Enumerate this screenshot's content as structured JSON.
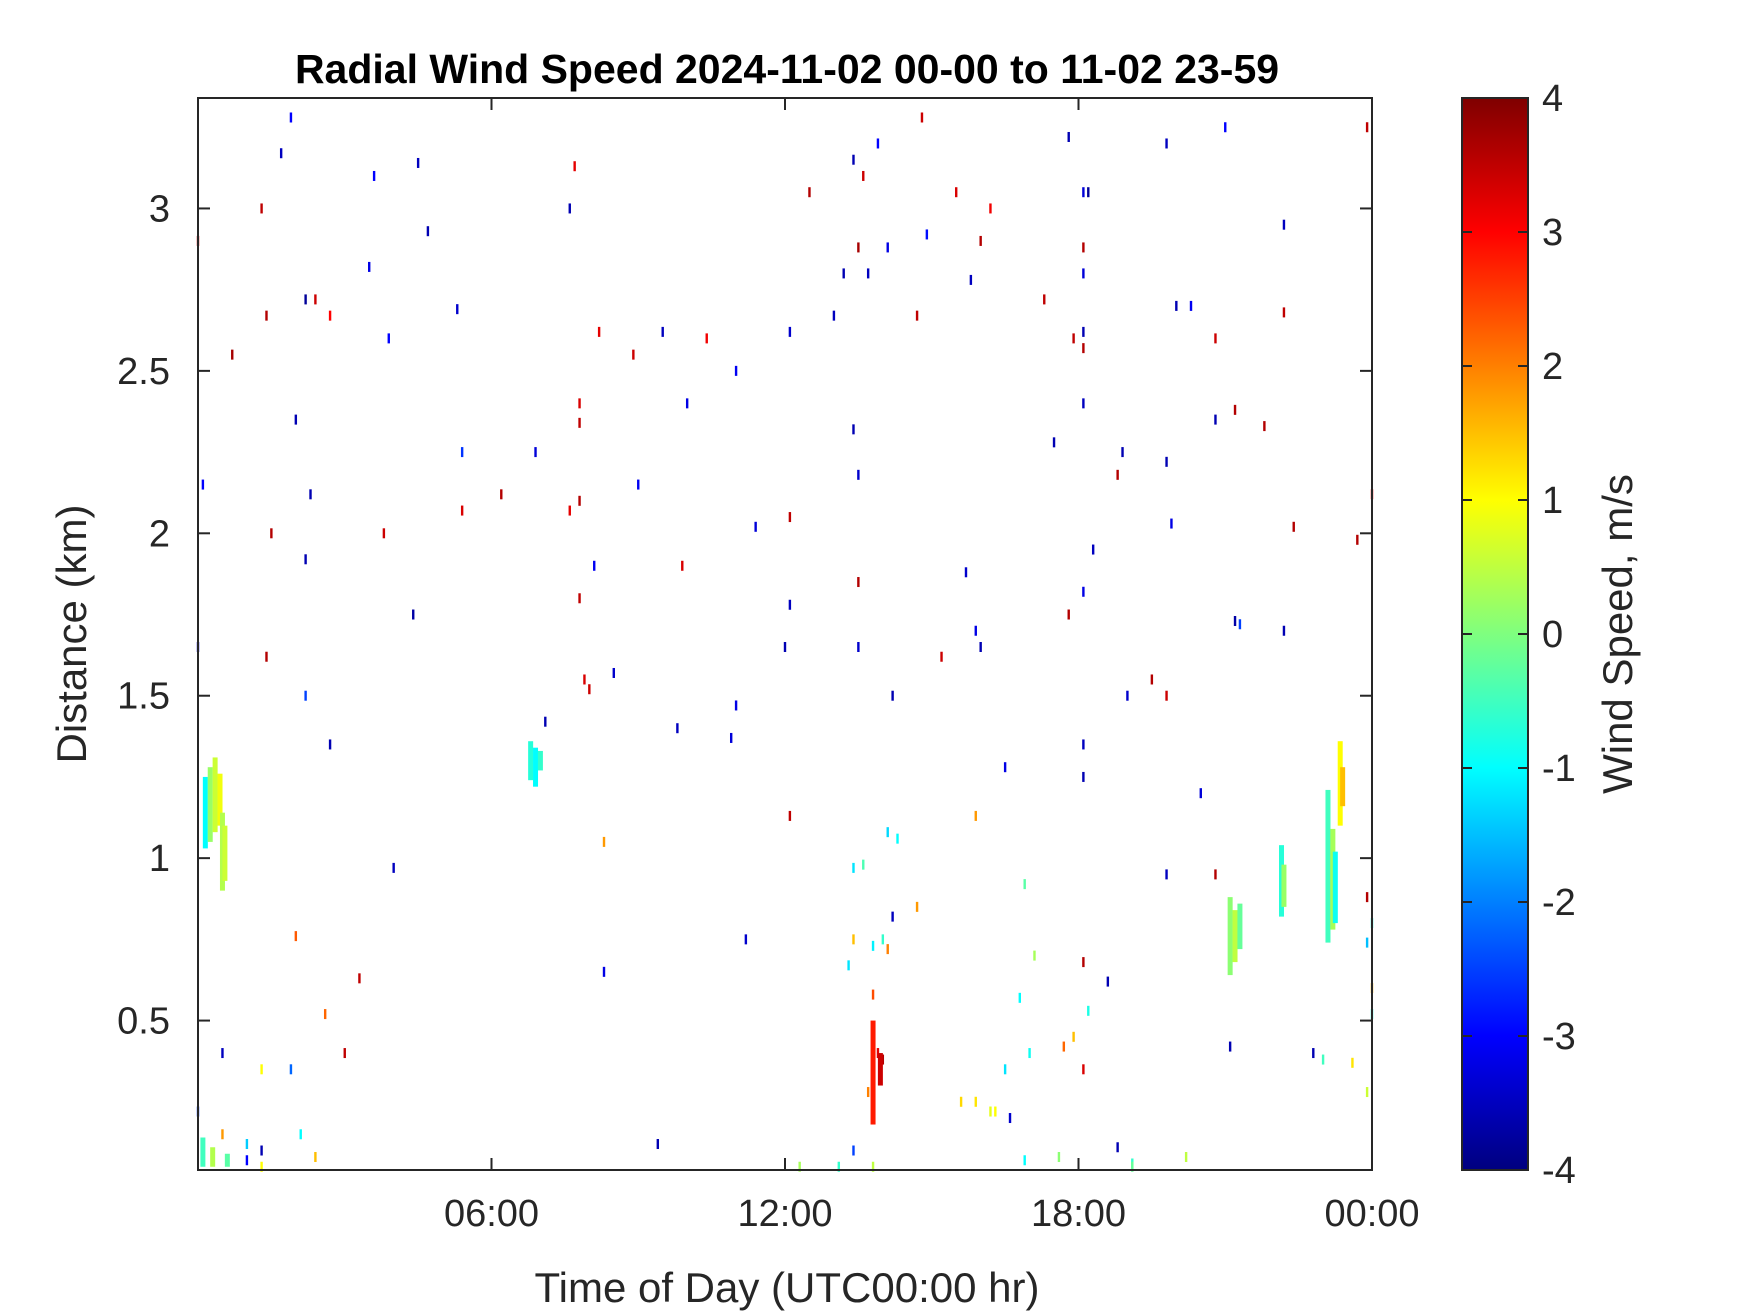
{
  "chart_data": {
    "type": "heatmap",
    "title": "Radial Wind Speed 2024-11-02 00-00 to 11-02 23-59",
    "xlabel": "Time of Day (UTC00:00 hr)",
    "ylabel": "Distance (km)",
    "xlim": [
      0,
      24
    ],
    "ylim": [
      0.04,
      3.34
    ],
    "x_ticks": [
      6,
      12,
      18,
      24
    ],
    "x_tick_labels": [
      "06:00",
      "12:00",
      "18:00",
      "00:00"
    ],
    "y_ticks": [
      0.5,
      1,
      1.5,
      2,
      2.5,
      3
    ],
    "y_tick_labels": [
      "0.5",
      "1",
      "1.5",
      "2",
      "2.5",
      "3"
    ],
    "colorbar": {
      "label": "Wind Speed, m/s",
      "colormap": "jet",
      "clim": [
        -4,
        4
      ],
      "ticks": [
        -4,
        -3,
        -2,
        -1,
        0,
        1,
        2,
        3,
        4
      ],
      "tick_labels": [
        "-4",
        "-3",
        "-2",
        "-1",
        "0",
        "1",
        "2",
        "3",
        "4"
      ]
    },
    "grid": false,
    "scattered_points": [
      {
        "x": 1.9,
        "y": 3.28,
        "v": -3
      },
      {
        "x": 1.7,
        "y": 3.17,
        "v": -3.5
      },
      {
        "x": 4.5,
        "y": 3.14,
        "v": -3.5
      },
      {
        "x": 3.6,
        "y": 3.1,
        "v": -3
      },
      {
        "x": 7.7,
        "y": 3.13,
        "v": 3.2
      },
      {
        "x": 1.3,
        "y": 3.0,
        "v": 3.5
      },
      {
        "x": 7.6,
        "y": 3.0,
        "v": -3.6
      },
      {
        "x": 0.0,
        "y": 2.9,
        "v": 3.3
      },
      {
        "x": 4.7,
        "y": 2.93,
        "v": -3.6
      },
      {
        "x": 3.5,
        "y": 2.82,
        "v": -3.2
      },
      {
        "x": 2.2,
        "y": 2.72,
        "v": -3.8
      },
      {
        "x": 2.4,
        "y": 2.72,
        "v": 3.4
      },
      {
        "x": 1.4,
        "y": 2.67,
        "v": 3.6
      },
      {
        "x": 2.7,
        "y": 2.67,
        "v": 3.0
      },
      {
        "x": 5.3,
        "y": 2.69,
        "v": -3.4
      },
      {
        "x": 3.9,
        "y": 2.6,
        "v": -3.0
      },
      {
        "x": 0.7,
        "y": 2.55,
        "v": 3.7
      },
      {
        "x": 8.2,
        "y": 2.62,
        "v": 3.2
      },
      {
        "x": 8.9,
        "y": 2.55,
        "v": 3.4
      },
      {
        "x": 9.5,
        "y": 2.62,
        "v": -3.5
      },
      {
        "x": 10.4,
        "y": 2.6,
        "v": 3.1
      },
      {
        "x": 7.8,
        "y": 2.4,
        "v": 3.3
      },
      {
        "x": 7.8,
        "y": 2.34,
        "v": 3.5
      },
      {
        "x": 2.0,
        "y": 2.35,
        "v": -3.6
      },
      {
        "x": 10.0,
        "y": 2.4,
        "v": -3.2
      },
      {
        "x": 5.4,
        "y": 2.25,
        "v": -2.6
      },
      {
        "x": 6.9,
        "y": 2.25,
        "v": -3.3
      },
      {
        "x": 0.1,
        "y": 2.15,
        "v": -3.0
      },
      {
        "x": 2.3,
        "y": 2.12,
        "v": -3.6
      },
      {
        "x": 6.2,
        "y": 2.12,
        "v": 3.6
      },
      {
        "x": 5.4,
        "y": 2.07,
        "v": 3.3
      },
      {
        "x": 7.6,
        "y": 2.07,
        "v": 3.2
      },
      {
        "x": 7.8,
        "y": 2.1,
        "v": 3.6
      },
      {
        "x": 9.0,
        "y": 2.15,
        "v": -3.1
      },
      {
        "x": 1.5,
        "y": 2.0,
        "v": 3.6
      },
      {
        "x": 3.8,
        "y": 2.0,
        "v": 3.4
      },
      {
        "x": 2.2,
        "y": 1.92,
        "v": -3.6
      },
      {
        "x": 8.1,
        "y": 1.9,
        "v": -3.1
      },
      {
        "x": 9.9,
        "y": 1.9,
        "v": 3.3
      },
      {
        "x": 4.4,
        "y": 1.75,
        "v": -3.7
      },
      {
        "x": 7.8,
        "y": 1.8,
        "v": 3.5
      },
      {
        "x": 0.0,
        "y": 1.65,
        "v": -3.3
      },
      {
        "x": 1.4,
        "y": 1.62,
        "v": 3.6
      },
      {
        "x": 7.9,
        "y": 1.55,
        "v": 3.3
      },
      {
        "x": 8.0,
        "y": 1.52,
        "v": 3.4
      },
      {
        "x": 8.5,
        "y": 1.57,
        "v": -3.4
      },
      {
        "x": 2.2,
        "y": 1.5,
        "v": -2.5
      },
      {
        "x": 11.0,
        "y": 1.47,
        "v": -3.2
      },
      {
        "x": 7.1,
        "y": 1.42,
        "v": -3.6
      },
      {
        "x": 9.8,
        "y": 1.4,
        "v": -3.5
      },
      {
        "x": 10.9,
        "y": 1.37,
        "v": -3.3
      },
      {
        "x": 2.7,
        "y": 1.35,
        "v": -3.6
      },
      {
        "x": 11.4,
        "y": 2.02,
        "v": -3.3
      },
      {
        "x": 11.0,
        "y": 2.5,
        "v": -3.1
      },
      {
        "x": 12.1,
        "y": 2.62,
        "v": -3.4
      },
      {
        "x": 12.1,
        "y": 2.05,
        "v": 3.5
      },
      {
        "x": 12.1,
        "y": 1.78,
        "v": -3.5
      },
      {
        "x": 12.0,
        "y": 1.65,
        "v": -3.6
      },
      {
        "x": 12.1,
        "y": 1.13,
        "v": 3.5
      },
      {
        "x": 11.2,
        "y": 0.75,
        "v": -3.4
      },
      {
        "x": 8.3,
        "y": 0.65,
        "v": -3.2
      },
      {
        "x": 12.5,
        "y": 3.05,
        "v": 3.6
      },
      {
        "x": 13.4,
        "y": 3.15,
        "v": -3.6
      },
      {
        "x": 13.6,
        "y": 3.1,
        "v": 3.4
      },
      {
        "x": 13.9,
        "y": 3.2,
        "v": -3.0
      },
      {
        "x": 14.8,
        "y": 3.28,
        "v": 3.4
      },
      {
        "x": 14.9,
        "y": 2.92,
        "v": -2.9
      },
      {
        "x": 13.5,
        "y": 2.88,
        "v": 3.7
      },
      {
        "x": 13.2,
        "y": 2.8,
        "v": -3.6
      },
      {
        "x": 13.7,
        "y": 2.8,
        "v": -3.5
      },
      {
        "x": 14.1,
        "y": 2.88,
        "v": -3.2
      },
      {
        "x": 13.0,
        "y": 2.67,
        "v": -3.5
      },
      {
        "x": 14.7,
        "y": 2.67,
        "v": 3.5
      },
      {
        "x": 13.4,
        "y": 2.32,
        "v": -3.6
      },
      {
        "x": 13.5,
        "y": 2.18,
        "v": -3.4
      },
      {
        "x": 13.5,
        "y": 1.85,
        "v": 3.6
      },
      {
        "x": 13.5,
        "y": 1.65,
        "v": -3.4
      },
      {
        "x": 15.2,
        "y": 1.62,
        "v": 3.4
      },
      {
        "x": 14.2,
        "y": 1.5,
        "v": -3.6
      },
      {
        "x": 15.9,
        "y": 1.7,
        "v": -3.2
      },
      {
        "x": 16.0,
        "y": 1.65,
        "v": -3.6
      },
      {
        "x": 15.7,
        "y": 1.88,
        "v": -3.4
      },
      {
        "x": 15.5,
        "y": 3.05,
        "v": 3.3
      },
      {
        "x": 16.2,
        "y": 3.0,
        "v": 3.1
      },
      {
        "x": 16.0,
        "y": 2.9,
        "v": 3.6
      },
      {
        "x": 15.8,
        "y": 2.78,
        "v": -3.5
      },
      {
        "x": 17.3,
        "y": 2.72,
        "v": 3.5
      },
      {
        "x": 17.8,
        "y": 3.22,
        "v": -3.6
      },
      {
        "x": 18.2,
        "y": 3.05,
        "v": -3.8
      },
      {
        "x": 18.1,
        "y": 3.05,
        "v": -3.3
      },
      {
        "x": 18.1,
        "y": 2.88,
        "v": 3.6
      },
      {
        "x": 18.1,
        "y": 2.8,
        "v": -3.3
      },
      {
        "x": 18.1,
        "y": 2.62,
        "v": -3.6
      },
      {
        "x": 18.1,
        "y": 2.57,
        "v": 3.6
      },
      {
        "x": 17.9,
        "y": 2.6,
        "v": 3.5
      },
      {
        "x": 18.1,
        "y": 2.4,
        "v": -3.5
      },
      {
        "x": 17.5,
        "y": 2.28,
        "v": -3.6
      },
      {
        "x": 18.3,
        "y": 1.95,
        "v": -3.5
      },
      {
        "x": 18.1,
        "y": 1.82,
        "v": -3.2
      },
      {
        "x": 17.8,
        "y": 1.75,
        "v": 3.6
      },
      {
        "x": 18.1,
        "y": 1.35,
        "v": -3.5
      },
      {
        "x": 18.1,
        "y": 1.25,
        "v": -3.6
      },
      {
        "x": 16.5,
        "y": 1.28,
        "v": -3.2
      },
      {
        "x": 18.1,
        "y": 0.68,
        "v": 3.6
      },
      {
        "x": 18.6,
        "y": 0.62,
        "v": -3.6
      },
      {
        "x": 18.8,
        "y": 2.18,
        "v": 3.6
      },
      {
        "x": 18.9,
        "y": 2.25,
        "v": -3.6
      },
      {
        "x": 19.8,
        "y": 3.2,
        "v": -3.5
      },
      {
        "x": 19.5,
        "y": 1.55,
        "v": 3.6
      },
      {
        "x": 19.0,
        "y": 1.5,
        "v": -3.4
      },
      {
        "x": 19.8,
        "y": 1.5,
        "v": 3.4
      },
      {
        "x": 19.8,
        "y": 2.22,
        "v": -3.6
      },
      {
        "x": 19.9,
        "y": 2.03,
        "v": -3.2
      },
      {
        "x": 20.0,
        "y": 2.7,
        "v": -3.6
      },
      {
        "x": 20.3,
        "y": 2.7,
        "v": -3.1
      },
      {
        "x": 20.8,
        "y": 2.6,
        "v": 3.4
      },
      {
        "x": 19.8,
        "y": 0.95,
        "v": -3.5
      },
      {
        "x": 20.5,
        "y": 1.2,
        "v": -3.3
      },
      {
        "x": 21.0,
        "y": 3.25,
        "v": -3.0
      },
      {
        "x": 20.8,
        "y": 2.35,
        "v": -3.6
      },
      {
        "x": 21.2,
        "y": 2.38,
        "v": 3.6
      },
      {
        "x": 21.8,
        "y": 2.33,
        "v": 3.6
      },
      {
        "x": 21.3,
        "y": 1.72,
        "v": -2.5
      },
      {
        "x": 21.2,
        "y": 1.73,
        "v": -3.7
      },
      {
        "x": 20.8,
        "y": 0.95,
        "v": 3.6
      },
      {
        "x": 21.1,
        "y": 0.42,
        "v": -3.6
      },
      {
        "x": 22.2,
        "y": 2.95,
        "v": -3.5
      },
      {
        "x": 22.2,
        "y": 2.68,
        "v": 3.5
      },
      {
        "x": 22.4,
        "y": 2.02,
        "v": 3.6
      },
      {
        "x": 23.7,
        "y": 1.98,
        "v": 3.6
      },
      {
        "x": 22.2,
        "y": 1.7,
        "v": -3.6
      },
      {
        "x": 23.9,
        "y": 3.25,
        "v": 3.5
      },
      {
        "x": 24.0,
        "y": 2.12,
        "v": 3.0
      },
      {
        "x": 23.9,
        "y": 0.88,
        "v": 3.6
      },
      {
        "x": 22.8,
        "y": 0.4,
        "v": -3.6
      },
      {
        "x": 23.0,
        "y": 0.38,
        "v": -0.5
      },
      {
        "x": 23.6,
        "y": 0.37,
        "v": 1.2
      },
      {
        "x": 0.5,
        "y": 0.4,
        "v": -3.5
      },
      {
        "x": 3.0,
        "y": 0.4,
        "v": 3.5
      },
      {
        "x": 1.3,
        "y": 0.35,
        "v": 1.0
      },
      {
        "x": 1.9,
        "y": 0.35,
        "v": -2.2
      },
      {
        "x": 3.3,
        "y": 0.63,
        "v": 3.5
      },
      {
        "x": 2.6,
        "y": 0.52,
        "v": 2.2
      },
      {
        "x": 2.0,
        "y": 0.76,
        "v": 2.3
      },
      {
        "x": 4.0,
        "y": 0.97,
        "v": -3.5
      },
      {
        "x": 8.3,
        "y": 1.05,
        "v": 1.8
      },
      {
        "x": 9.4,
        "y": 0.12,
        "v": -3.6
      },
      {
        "x": 14.7,
        "y": 0.85,
        "v": 1.8
      },
      {
        "x": 16.9,
        "y": 0.92,
        "v": -0.3
      },
      {
        "x": 17.7,
        "y": 0.42,
        "v": 2.2
      },
      {
        "x": 17.9,
        "y": 0.45,
        "v": 1.5
      },
      {
        "x": 18.2,
        "y": 0.53,
        "v": -0.8
      },
      {
        "x": 18.1,
        "y": 0.35,
        "v": 3.3
      },
      {
        "x": 16.8,
        "y": 0.57,
        "v": -1.0
      },
      {
        "x": 16.5,
        "y": 0.35,
        "v": -1.2
      },
      {
        "x": 17.0,
        "y": 0.4,
        "v": -0.9
      },
      {
        "x": 17.1,
        "y": 0.7,
        "v": 0.3
      },
      {
        "x": 16.3,
        "y": 0.22,
        "v": 1.0
      },
      {
        "x": 16.6,
        "y": 0.2,
        "v": -3.4
      },
      {
        "x": 15.6,
        "y": 0.25,
        "v": 1.3
      },
      {
        "x": 15.9,
        "y": 0.25,
        "v": 1.2
      },
      {
        "x": 15.9,
        "y": 1.13,
        "v": 1.8
      },
      {
        "x": 16.9,
        "y": 0.07,
        "v": -1.0
      },
      {
        "x": 17.6,
        "y": 0.08,
        "v": 0.1
      },
      {
        "x": 14.1,
        "y": 1.08,
        "v": -1.3
      },
      {
        "x": 14.3,
        "y": 1.06,
        "v": -1.0
      },
      {
        "x": 13.4,
        "y": 0.97,
        "v": -1.2
      },
      {
        "x": 13.6,
        "y": 0.98,
        "v": -0.4
      },
      {
        "x": 13.8,
        "y": 0.73,
        "v": -1.1
      },
      {
        "x": 13.3,
        "y": 0.67,
        "v": -1.2
      },
      {
        "x": 13.4,
        "y": 0.75,
        "v": 1.5
      },
      {
        "x": 14.0,
        "y": 0.75,
        "v": -0.6
      },
      {
        "x": 14.2,
        "y": 0.82,
        "v": -3.5
      },
      {
        "x": 14.1,
        "y": 0.72,
        "v": 2.0
      },
      {
        "x": 13.8,
        "y": 0.58,
        "v": 2.4
      },
      {
        "x": 13.7,
        "y": 0.28,
        "v": 2.0
      },
      {
        "x": 13.8,
        "y": 0.2,
        "v": 3.0
      },
      {
        "x": 13.4,
        "y": 0.1,
        "v": -2.5
      },
      {
        "x": 13.1,
        "y": 0.05,
        "v": -0.6
      },
      {
        "x": 13.8,
        "y": 0.05,
        "v": 0.5
      },
      {
        "x": 14.0,
        "y": 0.38,
        "v": 3.6
      },
      {
        "x": 13.9,
        "y": 0.4,
        "v": 3.2
      },
      {
        "x": 1.0,
        "y": 0.12,
        "v": -1.4
      },
      {
        "x": 1.0,
        "y": 0.07,
        "v": -3.0
      },
      {
        "x": 1.3,
        "y": 0.1,
        "v": -3.6
      },
      {
        "x": 1.3,
        "y": 0.05,
        "v": 1.0
      },
      {
        "x": 2.1,
        "y": 0.15,
        "v": -1.0
      },
      {
        "x": 2.4,
        "y": 0.08,
        "v": 1.5
      },
      {
        "x": 0.5,
        "y": 0.15,
        "v": 1.8
      },
      {
        "x": 0.0,
        "y": 0.22,
        "v": -2.5
      },
      {
        "x": 12.3,
        "y": 0.05,
        "v": 0.3
      },
      {
        "x": 20.2,
        "y": 0.08,
        "v": 0.5
      },
      {
        "x": 19.1,
        "y": 0.06,
        "v": -0.6
      },
      {
        "x": 18.8,
        "y": 0.11,
        "v": -3.6
      },
      {
        "x": 19.1,
        "y": 0.05,
        "v": -0.2
      },
      {
        "x": 23.9,
        "y": 0.28,
        "v": 0.6
      },
      {
        "x": 24.0,
        "y": 0.52,
        "v": -0.8
      },
      {
        "x": 24.0,
        "y": 0.6,
        "v": 1.6
      },
      {
        "x": 24.0,
        "y": 0.8,
        "v": -0.8
      },
      {
        "x": 23.9,
        "y": 0.74,
        "v": -1.5
      },
      {
        "x": 16.2,
        "y": 0.22,
        "v": 0.8
      }
    ],
    "streaks": [
      {
        "x": 0.15,
        "y0": 1.03,
        "y1": 1.25,
        "v": -1.0
      },
      {
        "x": 0.25,
        "y0": 1.05,
        "y1": 1.28,
        "v": 0.2
      },
      {
        "x": 0.35,
        "y0": 1.08,
        "y1": 1.31,
        "v": 0.6
      },
      {
        "x": 0.45,
        "y0": 1.1,
        "y1": 1.26,
        "v": 0.9
      },
      {
        "x": 0.5,
        "y0": 0.9,
        "y1": 1.14,
        "v": 0.4
      },
      {
        "x": 0.55,
        "y0": 0.93,
        "y1": 1.1,
        "v": 0.6
      },
      {
        "x": 6.8,
        "y0": 1.24,
        "y1": 1.36,
        "v": -0.7
      },
      {
        "x": 6.9,
        "y0": 1.22,
        "y1": 1.34,
        "v": -1.0
      },
      {
        "x": 7.0,
        "y0": 1.27,
        "y1": 1.33,
        "v": -0.6
      },
      {
        "x": 0.1,
        "y0": 0.05,
        "y1": 0.14,
        "v": -0.5
      },
      {
        "x": 0.3,
        "y0": 0.05,
        "y1": 0.11,
        "v": 0.4
      },
      {
        "x": 0.6,
        "y0": 0.05,
        "y1": 0.09,
        "v": -0.3
      },
      {
        "x": 13.8,
        "y0": 0.18,
        "y1": 0.5,
        "v": 2.8
      },
      {
        "x": 13.95,
        "y0": 0.3,
        "y1": 0.4,
        "v": 3.4
      },
      {
        "x": 21.1,
        "y0": 0.64,
        "y1": 0.88,
        "v": 0.1
      },
      {
        "x": 21.2,
        "y0": 0.68,
        "y1": 0.84,
        "v": 0.5
      },
      {
        "x": 21.3,
        "y0": 0.72,
        "y1": 0.86,
        "v": -0.2
      },
      {
        "x": 22.15,
        "y0": 0.82,
        "y1": 1.04,
        "v": -0.7
      },
      {
        "x": 22.2,
        "y0": 0.85,
        "y1": 0.98,
        "v": 0.2
      },
      {
        "x": 23.1,
        "y0": 0.74,
        "y1": 1.21,
        "v": -0.5
      },
      {
        "x": 23.2,
        "y0": 0.78,
        "y1": 1.09,
        "v": 0.3
      },
      {
        "x": 23.25,
        "y0": 0.8,
        "y1": 1.02,
        "v": -0.9
      },
      {
        "x": 23.35,
        "y0": 1.1,
        "y1": 1.36,
        "v": 1.0
      },
      {
        "x": 23.4,
        "y0": 1.16,
        "y1": 1.28,
        "v": 1.5
      }
    ]
  }
}
